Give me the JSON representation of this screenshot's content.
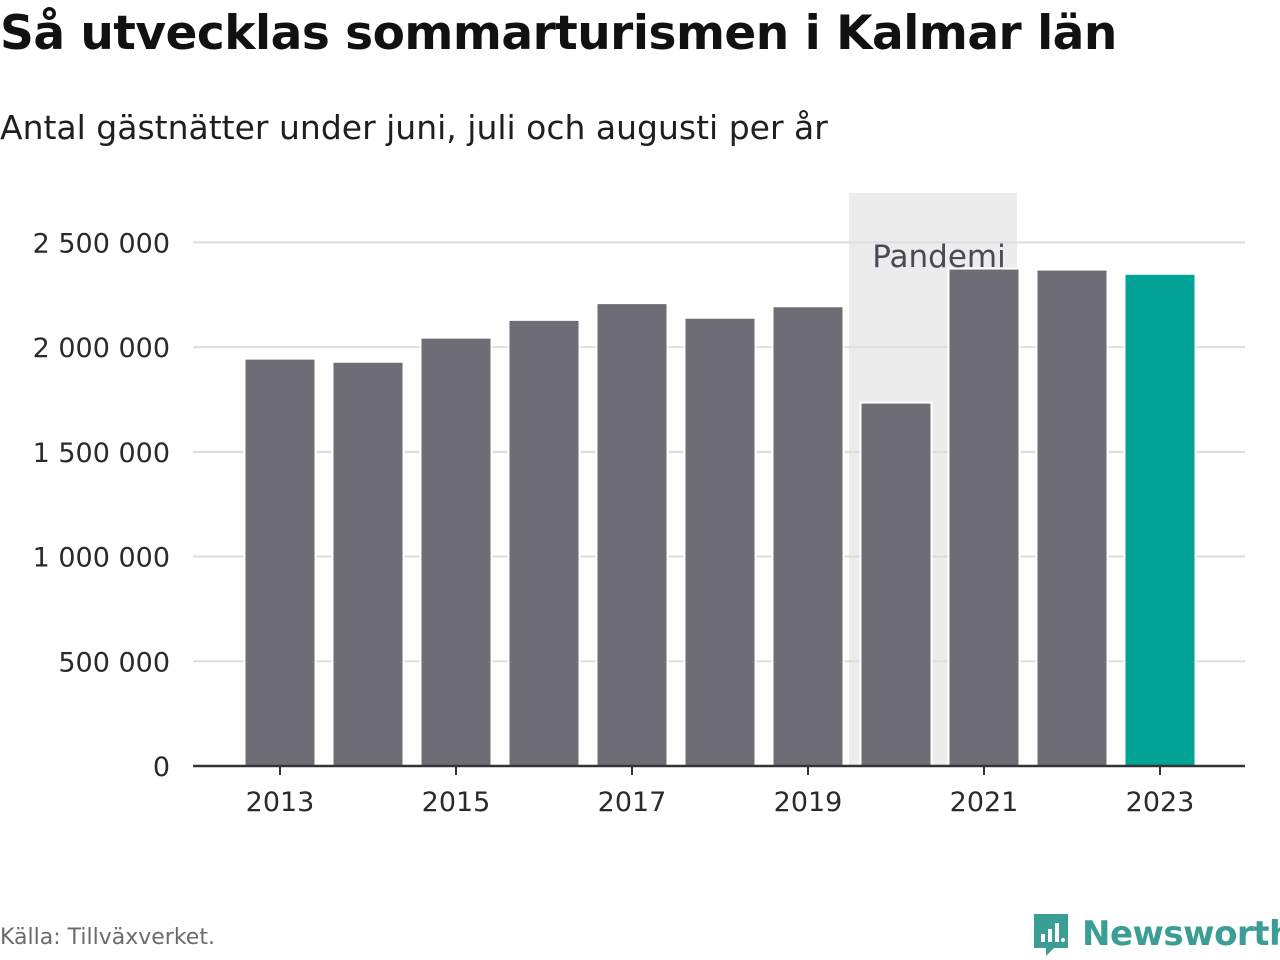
{
  "title": "Så utvecklas sommarturismen i Kalmar län",
  "subtitle": "Antal gästnätter under juni, juli och augusti per år",
  "source": "Källa: Tillväxverket.",
  "brand": {
    "name": "Newsworthy",
    "icon": "newsworthy-logo-icon",
    "color": "#3a9e94"
  },
  "colors": {
    "bar": "#6e6d75",
    "highlight": "#00a396",
    "pandemic_band": "#ececec",
    "grid": "#dddddd",
    "axis": "#333333"
  },
  "chart_data": {
    "type": "bar",
    "categories": [
      "2013",
      "2014",
      "2015",
      "2016",
      "2017",
      "2018",
      "2019",
      "2020",
      "2021",
      "2022",
      "2023"
    ],
    "values": [
      1945000,
      1930000,
      2045000,
      2130000,
      2210000,
      2140000,
      2195000,
      1735000,
      2375000,
      2370000,
      2350000
    ],
    "highlight_category": "2023",
    "ylim": [
      0,
      2750000
    ],
    "yticks": [
      0,
      500000,
      1000000,
      1500000,
      2000000,
      2500000
    ],
    "ytick_labels": [
      "0",
      "500 000",
      "1 000 000",
      "1 500 000",
      "2 000 000",
      "2 500 000"
    ],
    "xtick_labels": [
      "2013",
      "2015",
      "2017",
      "2019",
      "2021",
      "2023"
    ],
    "grid": true,
    "annotations": [
      {
        "type": "band",
        "label": "Pandemi",
        "from": "2020",
        "to": "2021"
      }
    ]
  }
}
